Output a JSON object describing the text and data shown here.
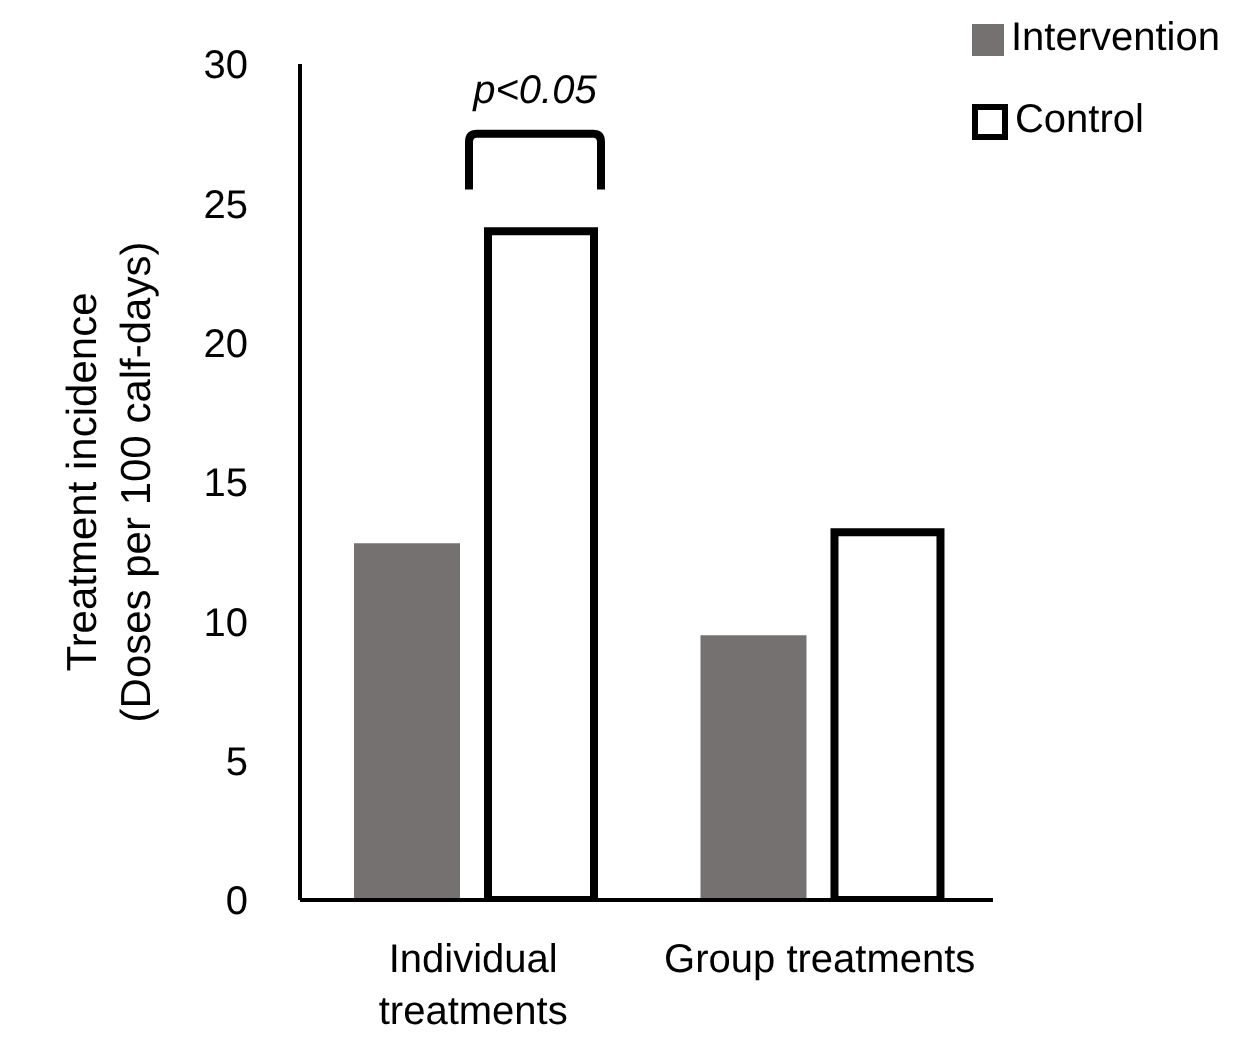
{
  "chart_data": {
    "type": "bar",
    "ylabel": "Treatment incidence\n(Doses per 100 calf-days)",
    "categories": [
      "Individual treatments",
      "Group treatments"
    ],
    "series": [
      {
        "name": "Intervention",
        "color": "#767171",
        "values": [
          12.8,
          9.5
        ]
      },
      {
        "name": "Control",
        "color": "#ffffff",
        "values": [
          24,
          13.2
        ]
      }
    ],
    "ylim": [
      0,
      30
    ],
    "yticks": [
      0,
      5,
      10,
      15,
      20,
      25,
      30
    ],
    "grid": false,
    "legend": "top right",
    "annotations": [
      "p<0.05"
    ]
  }
}
